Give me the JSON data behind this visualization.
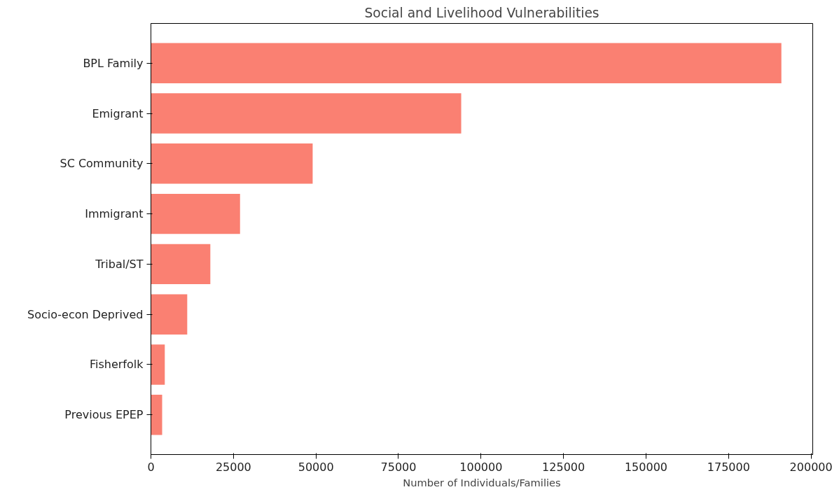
{
  "chart_data": {
    "type": "bar",
    "orientation": "horizontal",
    "title": "Social and Livelihood Vulnerabilities",
    "xlabel": "Number of Individuals/Families",
    "categories": [
      "BPL Family",
      "Emigrant",
      "SC Community",
      "Immigrant",
      "Tribal/ST",
      "Socio-econ Deprived",
      "Fisherfolk",
      "Previous EPEP"
    ],
    "values": [
      191000,
      94000,
      49000,
      27000,
      18000,
      11000,
      4200,
      3400
    ],
    "color": "#fa8072",
    "xlim": [
      0,
      200500
    ],
    "xticks": [
      0,
      25000,
      50000,
      75000,
      100000,
      125000,
      150000,
      175000,
      200000
    ]
  }
}
